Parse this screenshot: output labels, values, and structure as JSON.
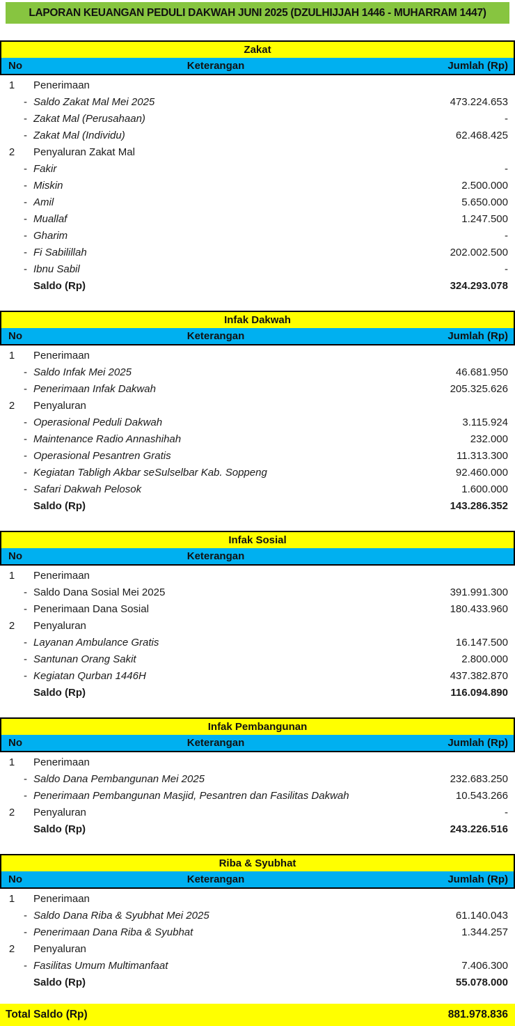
{
  "report": {
    "title": "LAPORAN KEUANGAN PEDULI DAKWAH JUNI 2025 (DZULHIJJAH 1446 - MUHARRAM 1447)"
  },
  "colors": {
    "title_bg": "#87C540",
    "section_bg": "#FFFF00",
    "header_bg": "#00B0F0",
    "text": "#1B1B1B"
  },
  "columns": {
    "no": "No",
    "keterangan": "Keterangan",
    "jumlah": "Jumlah (Rp)"
  },
  "sections": [
    {
      "title": "Zakat",
      "show_jumlah_header": true,
      "rows": [
        {
          "no": "1",
          "dash": false,
          "label": "Penerimaan",
          "amount": "",
          "italic": false,
          "bold": false
        },
        {
          "no": "",
          "dash": true,
          "label": "Saldo Zakat Mal Mei 2025",
          "amount": "473.224.653",
          "italic": true,
          "bold": false
        },
        {
          "no": "",
          "dash": true,
          "label": "Zakat Mal (Perusahaan)",
          "amount": "-",
          "italic": true,
          "bold": false
        },
        {
          "no": "",
          "dash": true,
          "label": "Zakat Mal (Individu)",
          "amount": "62.468.425",
          "italic": true,
          "bold": false
        },
        {
          "no": "2",
          "dash": false,
          "label": "Penyaluran Zakat Mal",
          "amount": "",
          "italic": false,
          "bold": false
        },
        {
          "no": "",
          "dash": true,
          "label": "Fakir",
          "amount": "-",
          "italic": true,
          "bold": false
        },
        {
          "no": "",
          "dash": true,
          "label": "Miskin",
          "amount": "2.500.000",
          "italic": true,
          "bold": false
        },
        {
          "no": "",
          "dash": true,
          "label": "Amil",
          "amount": "5.650.000",
          "italic": true,
          "bold": false
        },
        {
          "no": "",
          "dash": true,
          "label": "Muallaf",
          "amount": "1.247.500",
          "italic": true,
          "bold": false
        },
        {
          "no": "",
          "dash": true,
          "label": "Gharim",
          "amount": "-",
          "italic": true,
          "bold": false
        },
        {
          "no": "",
          "dash": true,
          "label": "Fi Sabilillah",
          "amount": "202.002.500",
          "italic": true,
          "bold": false
        },
        {
          "no": "",
          "dash": true,
          "label": "Ibnu Sabil",
          "amount": "-",
          "italic": true,
          "bold": false
        },
        {
          "no": "",
          "dash": false,
          "label": "Saldo (Rp)",
          "amount": "324.293.078",
          "italic": false,
          "bold": true
        }
      ]
    },
    {
      "title": "Infak Dakwah",
      "show_jumlah_header": true,
      "rows": [
        {
          "no": "1",
          "dash": false,
          "label": "Penerimaan",
          "amount": "",
          "italic": false,
          "bold": false
        },
        {
          "no": "",
          "dash": true,
          "label": "Saldo Infak Mei 2025",
          "amount": "46.681.950",
          "italic": true,
          "bold": false
        },
        {
          "no": "",
          "dash": true,
          "label": "Penerimaan Infak Dakwah",
          "amount": "205.325.626",
          "italic": true,
          "bold": false
        },
        {
          "no": "2",
          "dash": false,
          "label": "Penyaluran",
          "amount": "",
          "italic": false,
          "bold": false
        },
        {
          "no": "",
          "dash": true,
          "label": "Operasional Peduli Dakwah",
          "amount": "3.115.924",
          "italic": true,
          "bold": false
        },
        {
          "no": "",
          "dash": true,
          "label": "Maintenance Radio Annashihah",
          "amount": "232.000",
          "italic": true,
          "bold": false
        },
        {
          "no": "",
          "dash": true,
          "label": "Operasional Pesantren Gratis",
          "amount": "11.313.300",
          "italic": true,
          "bold": false
        },
        {
          "no": "",
          "dash": true,
          "label": "Kegiatan Tabligh Akbar seSulselbar Kab. Soppeng",
          "amount": "92.460.000",
          "italic": true,
          "bold": false
        },
        {
          "no": "",
          "dash": true,
          "label": "Safari Dakwah Pelosok",
          "amount": "1.600.000",
          "italic": true,
          "bold": false
        },
        {
          "no": "",
          "dash": false,
          "label": "Saldo (Rp)",
          "amount": "143.286.352",
          "italic": false,
          "bold": true
        }
      ]
    },
    {
      "title": "Infak Sosial",
      "show_jumlah_header": false,
      "rows": [
        {
          "no": "1",
          "dash": false,
          "label": "Penerimaan",
          "amount": "",
          "italic": false,
          "bold": false
        },
        {
          "no": "",
          "dash": true,
          "label": "Saldo Dana Sosial Mei 2025",
          "amount": "391.991.300",
          "italic": false,
          "bold": false
        },
        {
          "no": "",
          "dash": true,
          "label": "Penerimaan Dana Sosial",
          "amount": "180.433.960",
          "italic": false,
          "bold": false
        },
        {
          "no": "2",
          "dash": false,
          "label": "Penyaluran",
          "amount": "",
          "italic": false,
          "bold": false
        },
        {
          "no": "",
          "dash": true,
          "label": "Layanan Ambulance Gratis",
          "amount": "16.147.500",
          "italic": true,
          "bold": false
        },
        {
          "no": "",
          "dash": true,
          "label": "Santunan Orang Sakit",
          "amount": "2.800.000",
          "italic": true,
          "bold": false
        },
        {
          "no": "",
          "dash": true,
          "label": "Kegiatan Qurban 1446H",
          "amount": "437.382.870",
          "italic": true,
          "bold": false
        },
        {
          "no": "",
          "dash": false,
          "label": "Saldo (Rp)",
          "amount": "116.094.890",
          "italic": false,
          "bold": true
        }
      ]
    },
    {
      "title": "Infak Pembangunan",
      "show_jumlah_header": true,
      "rows": [
        {
          "no": "1",
          "dash": false,
          "label": "Penerimaan",
          "amount": "",
          "italic": false,
          "bold": false
        },
        {
          "no": "",
          "dash": true,
          "label": "Saldo Dana Pembangunan Mei 2025",
          "amount": "232.683.250",
          "italic": true,
          "bold": false
        },
        {
          "no": "",
          "dash": true,
          "label": "Penerimaan Pembangunan Masjid, Pesantren dan Fasilitas Dakwah",
          "amount": "10.543.266",
          "italic": true,
          "bold": false
        },
        {
          "no": "2",
          "dash": false,
          "label": "Penyaluran",
          "amount": "-",
          "italic": false,
          "bold": false
        },
        {
          "no": "",
          "dash": false,
          "label": "Saldo (Rp)",
          "amount": "243.226.516",
          "italic": false,
          "bold": true
        }
      ]
    },
    {
      "title": "Riba & Syubhat",
      "show_jumlah_header": true,
      "rows": [
        {
          "no": "1",
          "dash": false,
          "label": "Penerimaan",
          "amount": "",
          "italic": false,
          "bold": false
        },
        {
          "no": "",
          "dash": true,
          "label": "Saldo Dana Riba & Syubhat Mei 2025",
          "amount": "61.140.043",
          "italic": true,
          "bold": false
        },
        {
          "no": "",
          "dash": true,
          "label": "Penerimaan Dana Riba & Syubhat",
          "amount": "1.344.257",
          "italic": true,
          "bold": false
        },
        {
          "no": "2",
          "dash": false,
          "label": "Penyaluran",
          "amount": "",
          "italic": false,
          "bold": false
        },
        {
          "no": "",
          "dash": true,
          "label": "Fasilitas Umum Multimanfaat",
          "amount": "7.406.300",
          "italic": true,
          "bold": false
        },
        {
          "no": "",
          "dash": false,
          "label": "Saldo (Rp)",
          "amount": "55.078.000",
          "italic": false,
          "bold": true
        }
      ]
    }
  ],
  "total": {
    "label": "Total Saldo (Rp)",
    "amount": "881.978.836"
  }
}
